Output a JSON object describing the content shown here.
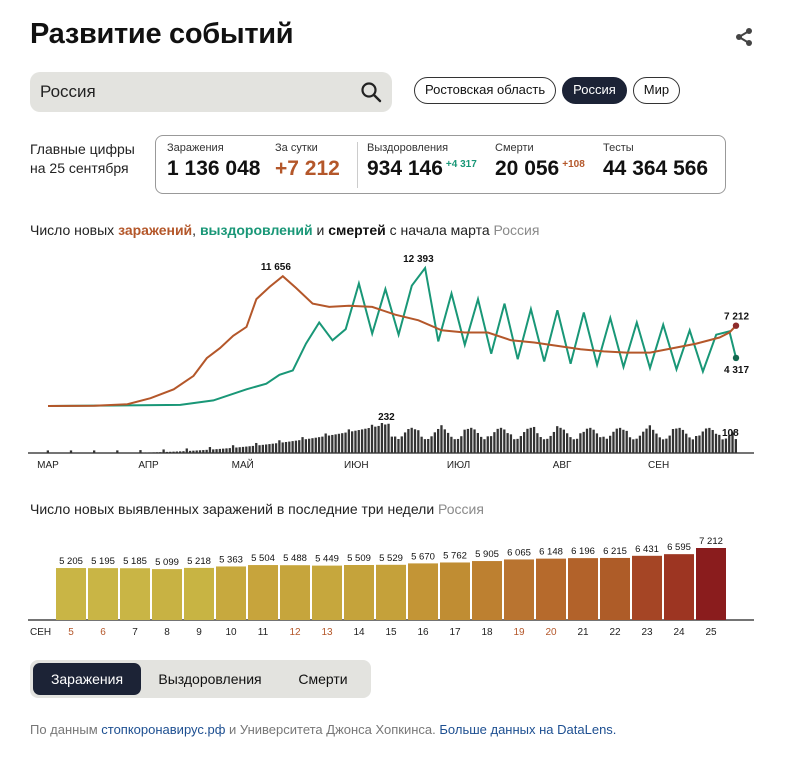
{
  "header": {
    "title": "Развитие событий",
    "share_icon": "share-icon"
  },
  "search": {
    "value": "Россия",
    "icon": "search-icon"
  },
  "region_chips": [
    {
      "label": "Ростовская область",
      "active": false
    },
    {
      "label": "Россия",
      "active": true
    },
    {
      "label": "Мир",
      "active": false
    }
  ],
  "summary": {
    "label_line1": "Главные цифры",
    "label_line2": "на 25 сентября",
    "infections": {
      "label": "Заражения",
      "value": "1 136 048"
    },
    "daily": {
      "label": "За сутки",
      "value": "+7 212"
    },
    "recovered": {
      "label": "Выздоровления",
      "value": "934 146",
      "delta": "+4 317"
    },
    "deaths": {
      "label": "Смерти",
      "value": "20 056",
      "delta": "+108"
    },
    "tests": {
      "label": "Тесты",
      "value": "44 364 566"
    }
  },
  "colors": {
    "infections": "#b4572a",
    "recovered": "#199777",
    "deaths": "#111111",
    "accent": "#1c2336"
  },
  "chart1": {
    "title_prefix": "Число новых ",
    "title_infections": "заражений",
    "title_sep1": ", ",
    "title_recovered": "выздоровлений",
    "title_sep2": " и ",
    "title_deaths": "смертей",
    "title_suffix": " с начала марта",
    "region": "Россия"
  },
  "chart2": {
    "title": "Число новых выявленных заражений в последние три недели",
    "region": "Россия"
  },
  "chart_data": [
    {
      "type": "line",
      "title": "Число новых заражений, выздоровлений и смертей с начала марта",
      "x_range": [
        "2020-03-01",
        "2020-09-25"
      ],
      "x_tick_labels": [
        "МАР",
        "АПР",
        "МАЙ",
        "ИЮН",
        "ИЮЛ",
        "АВГ",
        "СЕН"
      ],
      "annotations": [
        {
          "series": "Заражения",
          "date": "2020-05-11",
          "value": 11656,
          "label": "11 656"
        },
        {
          "series": "Выздоровления",
          "date": "2020-06-23",
          "value": 12393,
          "label": "12 393"
        },
        {
          "series": "Заражения",
          "date": "2020-09-25",
          "value": 7212,
          "label": "7 212"
        },
        {
          "series": "Выздоровления",
          "date": "2020-09-25",
          "value": 4317,
          "label": "4 317"
        },
        {
          "series": "Смерти",
          "date": "2020-06-10",
          "value": 232,
          "label": "232"
        },
        {
          "series": "Смерти",
          "date": "2020-09-25",
          "value": 108,
          "label": "108"
        }
      ],
      "series": [
        {
          "name": "Заражения",
          "points": [
            [
              "2020-03-01",
              0
            ],
            [
              "2020-03-15",
              20
            ],
            [
              "2020-03-25",
              160
            ],
            [
              "2020-04-01",
              700
            ],
            [
              "2020-04-08",
              1500
            ],
            [
              "2020-04-14",
              2700
            ],
            [
              "2020-04-18",
              4300
            ],
            [
              "2020-04-22",
              5200
            ],
            [
              "2020-04-26",
              6300
            ],
            [
              "2020-04-30",
              7100
            ],
            [
              "2020-05-03",
              9600
            ],
            [
              "2020-05-07",
              10700
            ],
            [
              "2020-05-11",
              11656
            ],
            [
              "2020-05-15",
              10600
            ],
            [
              "2020-05-20",
              9200
            ],
            [
              "2020-05-25",
              8900
            ],
            [
              "2020-05-31",
              9000
            ],
            [
              "2020-06-07",
              8900
            ],
            [
              "2020-06-14",
              8200
            ],
            [
              "2020-06-21",
              7700
            ],
            [
              "2020-06-28",
              6800
            ],
            [
              "2020-07-05",
              6600
            ],
            [
              "2020-07-12",
              6600
            ],
            [
              "2020-07-19",
              5900
            ],
            [
              "2020-07-26",
              5700
            ],
            [
              "2020-08-02",
              5400
            ],
            [
              "2020-08-09",
              5100
            ],
            [
              "2020-08-16",
              4900
            ],
            [
              "2020-08-23",
              4800
            ],
            [
              "2020-08-30",
              4800
            ],
            [
              "2020-09-06",
              5200
            ],
            [
              "2020-09-13",
              5600
            ],
            [
              "2020-09-20",
              6150
            ],
            [
              "2020-09-23",
              6600
            ],
            [
              "2020-09-25",
              7212
            ]
          ]
        },
        {
          "name": "Выздоровления",
          "points": [
            [
              "2020-03-01",
              0
            ],
            [
              "2020-04-10",
              100
            ],
            [
              "2020-04-20",
              500
            ],
            [
              "2020-04-30",
              1500
            ],
            [
              "2020-05-06",
              2000
            ],
            [
              "2020-05-10",
              2800
            ],
            [
              "2020-05-14",
              3200
            ],
            [
              "2020-05-18",
              5600
            ],
            [
              "2020-05-22",
              7500
            ],
            [
              "2020-05-26",
              5900
            ],
            [
              "2020-05-30",
              6900
            ],
            [
              "2020-06-03",
              11000
            ],
            [
              "2020-06-07",
              6500
            ],
            [
              "2020-06-11",
              10500
            ],
            [
              "2020-06-15",
              6400
            ],
            [
              "2020-06-19",
              10800
            ],
            [
              "2020-06-23",
              12393
            ],
            [
              "2020-06-27",
              5800
            ],
            [
              "2020-07-01",
              10100
            ],
            [
              "2020-07-05",
              5500
            ],
            [
              "2020-07-09",
              9600
            ],
            [
              "2020-07-13",
              4700
            ],
            [
              "2020-07-17",
              9200
            ],
            [
              "2020-07-21",
              4200
            ],
            [
              "2020-07-25",
              8700
            ],
            [
              "2020-07-29",
              4000
            ],
            [
              "2020-08-02",
              8600
            ],
            [
              "2020-08-06",
              3800
            ],
            [
              "2020-08-10",
              8400
            ],
            [
              "2020-08-14",
              3700
            ],
            [
              "2020-08-18",
              7900
            ],
            [
              "2020-08-22",
              3500
            ],
            [
              "2020-08-26",
              7500
            ],
            [
              "2020-08-30",
              3400
            ],
            [
              "2020-09-03",
              7300
            ],
            [
              "2020-09-07",
              3300
            ],
            [
              "2020-09-11",
              6800
            ],
            [
              "2020-09-15",
              3100
            ],
            [
              "2020-09-19",
              6400
            ],
            [
              "2020-09-23",
              6700
            ],
            [
              "2020-09-25",
              4317
            ]
          ]
        },
        {
          "name": "Смерти",
          "values_note_range": [
            0,
            232
          ]
        }
      ]
    },
    {
      "type": "bar",
      "title": "Число новых выявленных заражений в последние три недели",
      "xlabel": "СЕН",
      "categories": [
        "5",
        "6",
        "7",
        "8",
        "9",
        "10",
        "11",
        "12",
        "13",
        "14",
        "15",
        "16",
        "17",
        "18",
        "19",
        "20",
        "21",
        "22",
        "23",
        "24",
        "25"
      ],
      "values": [
        5205,
        5195,
        5185,
        5099,
        5218,
        5363,
        5504,
        5488,
        5449,
        5509,
        5529,
        5670,
        5762,
        5905,
        6065,
        6148,
        6196,
        6215,
        6431,
        6595,
        7212
      ],
      "value_labels": [
        "5 205",
        "5 195",
        "5 185",
        "5 099",
        "5 218",
        "5 363",
        "5 504",
        "5 488",
        "5 449",
        "5 509",
        "5 529",
        "5 670",
        "5 762",
        "5 905",
        "6 065",
        "6 148",
        "6 196",
        "6 215",
        "6 431",
        "6 595",
        "7 212"
      ],
      "weekend_categories": [
        "5",
        "6",
        "12",
        "13",
        "19",
        "20"
      ]
    }
  ],
  "tabs": [
    {
      "label": "Заражения",
      "active": true
    },
    {
      "label": "Выздоровления",
      "active": false
    },
    {
      "label": "Смерти",
      "active": false
    }
  ],
  "footer": {
    "prefix": "По данным ",
    "link1": "стопкоронавирус.рф",
    "middle": " и Университета Джонса Хопкинса. ",
    "link2": "Больше данных на DataLens."
  }
}
